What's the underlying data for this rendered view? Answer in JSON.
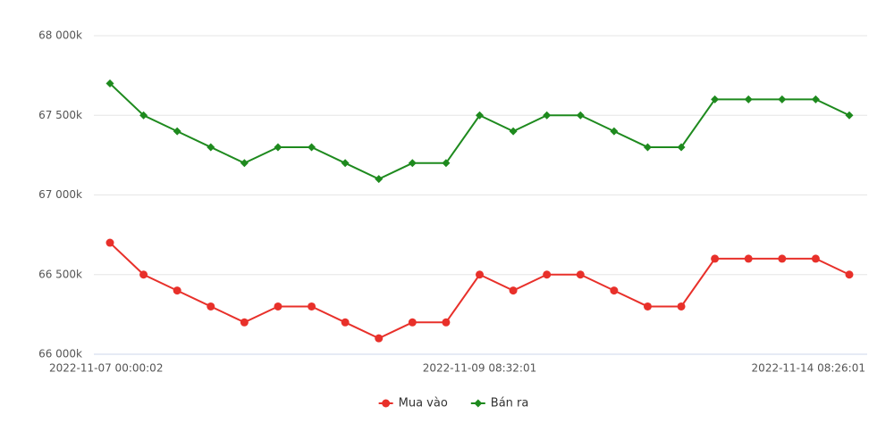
{
  "chart_data": {
    "type": "line",
    "categories": [
      "2022-11-07 00:00:02",
      null,
      null,
      null,
      null,
      null,
      null,
      null,
      null,
      null,
      null,
      "2022-11-09 08:32:01",
      null,
      null,
      null,
      null,
      null,
      null,
      null,
      null,
      null,
      null,
      "2022-11-14 08:26:01"
    ],
    "series": [
      {
        "name": "Mua vào",
        "color": "#e8302a",
        "marker": "circle",
        "values": [
          66700,
          66500,
          66400,
          66300,
          66200,
          66300,
          66300,
          66200,
          66100,
          66200,
          66200,
          66500,
          66400,
          66500,
          66500,
          66400,
          66300,
          66300,
          66600,
          66600,
          66600,
          66600,
          66500
        ]
      },
      {
        "name": "Bán ra",
        "color": "#1e8a1e",
        "marker": "diamond",
        "values": [
          67700,
          67500,
          67400,
          67300,
          67200,
          67300,
          67300,
          67200,
          67100,
          67200,
          67200,
          67500,
          67400,
          67500,
          67500,
          67400,
          67300,
          67300,
          67600,
          67600,
          67600,
          67600,
          67500
        ]
      }
    ],
    "ylim": [
      66000,
      68000
    ],
    "yticks": [
      {
        "value": 66000,
        "label": "66 000k"
      },
      {
        "value": 66500,
        "label": "66 500k"
      },
      {
        "value": 67000,
        "label": "67 000k"
      },
      {
        "value": 67500,
        "label": "67 500k"
      },
      {
        "value": 68000,
        "label": "68 000k"
      }
    ],
    "grid": true,
    "legend": "bottom"
  }
}
